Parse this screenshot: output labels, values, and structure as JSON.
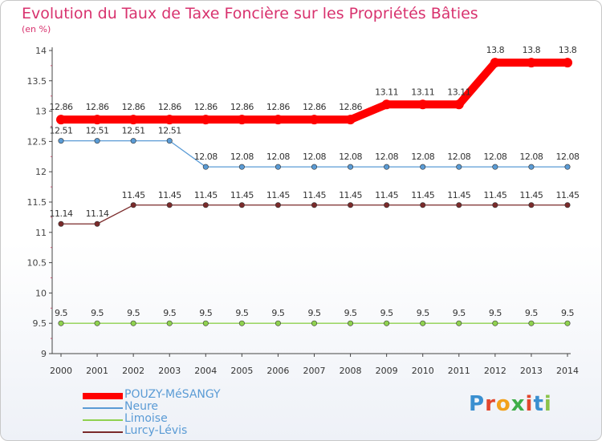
{
  "title": "Evolution du Taux de Taxe Foncière sur les Propriétés Bâties",
  "subtitle": "(en %)",
  "logo_text": "Proxiti",
  "chart_data": {
    "type": "line",
    "title": "Evolution du Taux de Taxe Foncière sur les Propriétés Bâties",
    "ylabel": "(en %)",
    "xlabel": "",
    "ylim": [
      9,
      14
    ],
    "y_ticks": [
      9,
      9.5,
      10,
      10.5,
      11,
      11.5,
      12,
      12.5,
      13,
      13.5,
      14
    ],
    "y_tick_labels": [
      "9",
      "9.5",
      "10",
      "10.5",
      "11",
      "11.5",
      "12",
      "12.5",
      "13",
      "13.5",
      "14"
    ],
    "categories": [
      "2000",
      "2001",
      "2002",
      "2003",
      "2004",
      "2005",
      "2006",
      "2007",
      "2008",
      "2009",
      "2010",
      "2011",
      "2012",
      "2013",
      "2014"
    ],
    "legend_position": "bottom-left",
    "series": [
      {
        "name": "POUZY-MéSANGY",
        "color": "#ff0000",
        "values": [
          12.86,
          12.86,
          12.86,
          12.86,
          12.86,
          12.86,
          12.86,
          12.86,
          12.86,
          13.11,
          13.11,
          13.11,
          13.8,
          13.8,
          13.8
        ],
        "labels": [
          "12.86",
          "12.86",
          "12.86",
          "12.86",
          "12.86",
          "12.86",
          "12.86",
          "12.86",
          "12.86",
          "13.11",
          "13.11",
          "13.11",
          "13.8",
          "13.8",
          "13.8"
        ]
      },
      {
        "name": "Neure",
        "color": "#5a9bd5",
        "values": [
          12.51,
          12.51,
          12.51,
          12.51,
          12.08,
          12.08,
          12.08,
          12.08,
          12.08,
          12.08,
          12.08,
          12.08,
          12.08,
          12.08,
          12.08
        ],
        "labels": [
          "12.51",
          "12.51",
          "12.51",
          "12.51",
          "12.08",
          "12.08",
          "12.08",
          "12.08",
          "12.08",
          "12.08",
          "12.08",
          "12.08",
          "12.08",
          "12.08",
          "12.08"
        ]
      },
      {
        "name": "Limoise",
        "color": "#8fd14f",
        "values": [
          9.5,
          9.5,
          9.5,
          9.5,
          9.5,
          9.5,
          9.5,
          9.5,
          9.5,
          9.5,
          9.5,
          9.5,
          9.5,
          9.5,
          9.5
        ],
        "labels": [
          "9.5",
          "9.5",
          "9.5",
          "9.5",
          "9.5",
          "9.5",
          "9.5",
          "9.5",
          "9.5",
          "9.5",
          "9.5",
          "9.5",
          "9.5",
          "9.5",
          "9.5"
        ]
      },
      {
        "name": "Lurcy-Lévis",
        "color": "#7a2a2a",
        "values": [
          11.14,
          11.14,
          11.45,
          11.45,
          11.45,
          11.45,
          11.45,
          11.45,
          11.45,
          11.45,
          11.45,
          11.45,
          11.45,
          11.45,
          11.45
        ],
        "labels": [
          "11.14",
          "11.14",
          "11.45",
          "11.45",
          "11.45",
          "11.45",
          "11.45",
          "11.45",
          "11.45",
          "11.45",
          "11.45",
          "11.45",
          "11.45",
          "11.45",
          "11.45"
        ]
      }
    ]
  }
}
